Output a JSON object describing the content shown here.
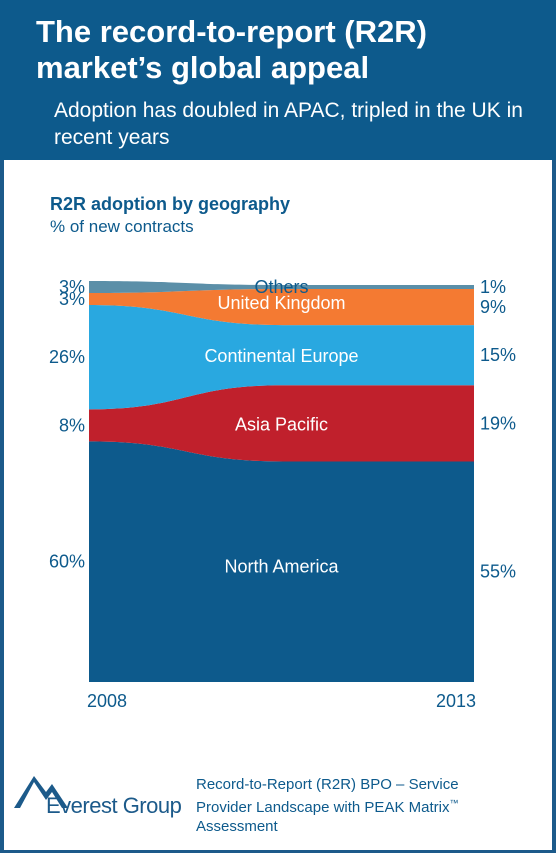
{
  "header": {
    "title": "The record-to-report (R2R) market’s global appeal",
    "subtitle": "Adoption has doubled in APAC, tripled in the UK in recent years"
  },
  "chart_heading": "R2R adoption by geography",
  "chart_subheading": "% of new contracts",
  "chart_data": {
    "type": "area",
    "x": [
      "2008",
      "2013"
    ],
    "ylim": [
      0,
      100
    ],
    "stacked": true,
    "series": [
      {
        "name": "North America",
        "values": [
          60,
          55
        ],
        "start_label": "60%",
        "end_label": "55%",
        "color": "#0d5a8c",
        "text_color": "#ffffff"
      },
      {
        "name": "Asia Pacific",
        "values": [
          8,
          19
        ],
        "start_label": "8%",
        "end_label": "19%",
        "color": "#c0202c",
        "text_color": "#ffffff"
      },
      {
        "name": "Continental Europe",
        "values": [
          26,
          15
        ],
        "start_label": "26%",
        "end_label": "15%",
        "color": "#29a8e0",
        "text_color": "#ffffff"
      },
      {
        "name": "United Kingdom",
        "values": [
          3,
          9
        ],
        "start_label": "3%",
        "end_label": "9%",
        "color": "#f47a32",
        "text_color": "#ffffff"
      },
      {
        "name": "Others",
        "values": [
          3,
          1
        ],
        "start_label": "3%",
        "end_label": "1%",
        "color": "#5b8fa8",
        "text_color": "#0d5a8c"
      }
    ]
  },
  "footer": {
    "brand": "Everest Group",
    "line1": "Record-to-Report (R2R) BPO – Service",
    "line2": "Provider Landscape with PEAK Matrix",
    "tm": "™",
    "line3": "Assessment"
  }
}
